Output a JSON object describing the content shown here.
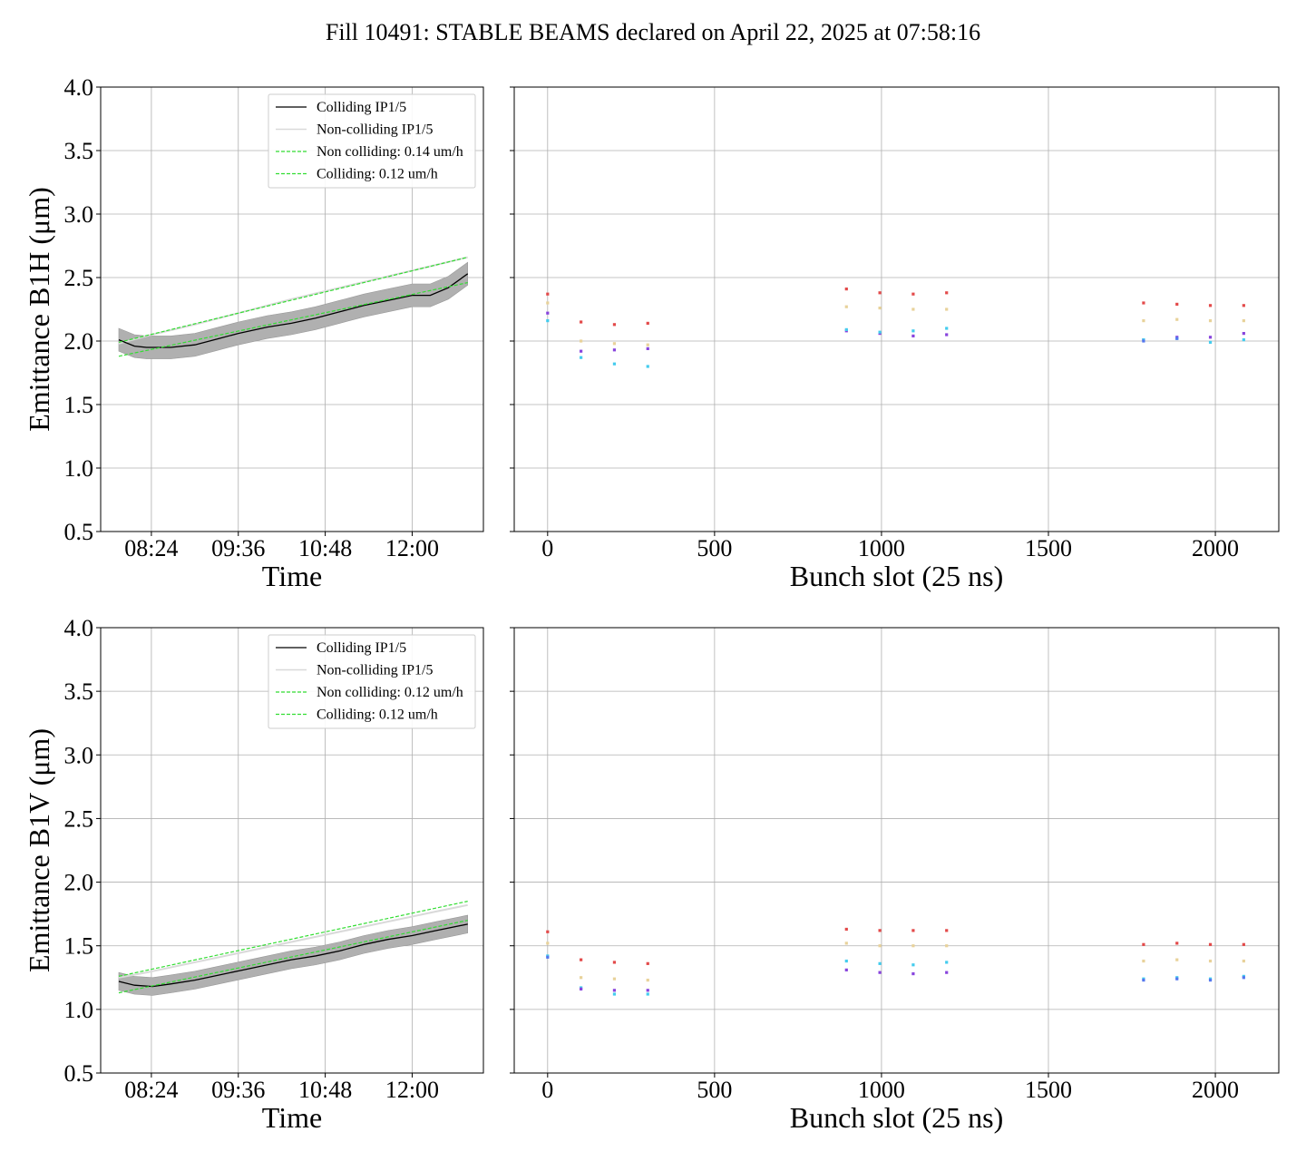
{
  "figure": {
    "title": "Fill 10491: STABLE BEAMS declared on April 22, 2025 at 07:58:16"
  },
  "chart_data": [
    {
      "type": "line",
      "panel": "top-left",
      "ylabel": "Emittance B1H (μm)",
      "xlabel": "Time",
      "ylim": [
        0.5,
        4.0
      ],
      "yticks": [
        "0.5",
        "1.0",
        "1.5",
        "2.0",
        "2.5",
        "3.0",
        "3.5",
        "4.0"
      ],
      "xticks": [
        "08:24",
        "09:36",
        "10:48",
        "12:00"
      ],
      "xtick_minutes": [
        504,
        576,
        648,
        720
      ],
      "xlim_minutes": [
        462,
        779
      ],
      "grid": true,
      "legend": {
        "placement": "top-right",
        "entries": [
          "Colliding IP1/5",
          "Non-colliding IP1/5",
          "Non colliding: 0.14 um/h",
          "Colliding: 0.12 um/h"
        ]
      },
      "colors": {
        "colliding": "#000000",
        "band": "#b0b0b0",
        "noncolliding": "#d9d9d9",
        "fit": "#33dd33"
      },
      "series": [
        {
          "name": "Colliding IP1/5",
          "x_minutes": [
            477,
            490,
            500,
            520,
            540,
            560,
            576,
            600,
            620,
            640,
            660,
            680,
            700,
            720,
            735,
            750,
            766
          ],
          "values": [
            2.01,
            1.96,
            1.95,
            1.95,
            1.97,
            2.02,
            2.06,
            2.11,
            2.14,
            2.18,
            2.23,
            2.28,
            2.32,
            2.36,
            2.36,
            2.42,
            2.53
          ],
          "band_halfwidth": 0.09
        },
        {
          "name": "Non-colliding IP1/5",
          "x_minutes": [
            477,
            500,
            540,
            580,
            620,
            660,
            700,
            740,
            766
          ],
          "values": [
            1.98,
            2.04,
            2.13,
            2.23,
            2.33,
            2.42,
            2.51,
            2.6,
            2.66
          ]
        },
        {
          "name": "Non colliding: 0.14 um/h",
          "x_minutes": [
            477,
            766
          ],
          "values": [
            1.99,
            2.66
          ]
        },
        {
          "name": "Colliding: 0.12 um/h",
          "x_minutes": [
            477,
            766
          ],
          "values": [
            1.88,
            2.46
          ]
        }
      ]
    },
    {
      "type": "scatter",
      "panel": "top-right",
      "xlabel": "Bunch slot (25 ns)",
      "xlim": [
        -100,
        2190
      ],
      "ylim": [
        0.5,
        4.0
      ],
      "xticks": [
        0,
        500,
        1000,
        1500,
        2000
      ],
      "grid": true,
      "groups": [
        {
          "color": "#e34a4a",
          "x": [
            0,
            100,
            200,
            300,
            895,
            995,
            1095,
            1195,
            1785,
            1885,
            1985,
            2085
          ],
          "y": [
            2.37,
            2.15,
            2.13,
            2.14,
            2.41,
            2.38,
            2.37,
            2.38,
            2.3,
            2.29,
            2.28,
            2.28
          ]
        },
        {
          "color": "#e8d29a",
          "x": [
            0,
            100,
            200,
            300,
            895,
            995,
            1095,
            1195,
            1785,
            1885,
            1985,
            2085
          ],
          "y": [
            2.3,
            2.0,
            1.98,
            1.97,
            2.27,
            2.26,
            2.25,
            2.25,
            2.16,
            2.17,
            2.16,
            2.16
          ]
        },
        {
          "color": "#8844dd",
          "x": [
            0,
            100,
            200,
            300,
            895,
            995,
            1095,
            1195,
            1785,
            1885,
            1985,
            2085
          ],
          "y": [
            2.22,
            1.92,
            1.93,
            1.94,
            2.08,
            2.06,
            2.04,
            2.05,
            2.01,
            2.03,
            2.03,
            2.06
          ]
        },
        {
          "color": "#44ccee",
          "x": [
            0,
            100,
            200,
            300,
            895,
            995,
            1095,
            1195,
            1785,
            1885,
            1985,
            2085
          ],
          "y": [
            2.16,
            1.87,
            1.82,
            1.8,
            2.09,
            2.07,
            2.08,
            2.1,
            2.01,
            2.02,
            1.99,
            2.01
          ]
        },
        {
          "color": "#5577ee",
          "x": [
            1785,
            1885
          ],
          "y": [
            2.0,
            2.02
          ]
        }
      ]
    },
    {
      "type": "line",
      "panel": "bottom-left",
      "ylabel": "Emittance B1V (μm)",
      "xlabel": "Time",
      "ylim": [
        0.5,
        4.0
      ],
      "yticks": [
        "0.5",
        "1.0",
        "1.5",
        "2.0",
        "2.5",
        "3.0",
        "3.5",
        "4.0"
      ],
      "xticks": [
        "08:24",
        "09:36",
        "10:48",
        "12:00"
      ],
      "xtick_minutes": [
        504,
        576,
        648,
        720
      ],
      "xlim_minutes": [
        462,
        779
      ],
      "grid": true,
      "legend": {
        "placement": "top-right",
        "entries": [
          "Colliding IP1/5",
          "Non-colliding IP1/5",
          "Non colliding: 0.12 um/h",
          "Colliding: 0.12 um/h"
        ]
      },
      "colors": {
        "colliding": "#000000",
        "band": "#b0b0b0",
        "noncolliding": "#d9d9d9",
        "fit": "#33dd33"
      },
      "series": [
        {
          "name": "Colliding IP1/5",
          "x_minutes": [
            477,
            490,
            505,
            520,
            540,
            560,
            580,
            600,
            620,
            640,
            660,
            680,
            700,
            720,
            740,
            766
          ],
          "values": [
            1.22,
            1.19,
            1.18,
            1.2,
            1.23,
            1.27,
            1.31,
            1.35,
            1.39,
            1.42,
            1.46,
            1.51,
            1.55,
            1.58,
            1.62,
            1.67
          ],
          "band_halfwidth": 0.07
        },
        {
          "name": "Non-colliding IP1/5",
          "x_minutes": [
            477,
            500,
            540,
            580,
            620,
            660,
            700,
            740,
            766
          ],
          "values": [
            1.25,
            1.29,
            1.37,
            1.45,
            1.53,
            1.61,
            1.69,
            1.77,
            1.82
          ]
        },
        {
          "name": "Non colliding: 0.12 um/h",
          "x_minutes": [
            477,
            766
          ],
          "values": [
            1.26,
            1.85
          ]
        },
        {
          "name": "Colliding: 0.12 um/h",
          "x_minutes": [
            477,
            766
          ],
          "values": [
            1.13,
            1.7
          ]
        }
      ]
    },
    {
      "type": "scatter",
      "panel": "bottom-right",
      "xlabel": "Bunch slot (25 ns)",
      "xlim": [
        -100,
        2190
      ],
      "ylim": [
        0.5,
        4.0
      ],
      "xticks": [
        0,
        500,
        1000,
        1500,
        2000
      ],
      "grid": true,
      "groups": [
        {
          "color": "#e34a4a",
          "x": [
            0,
            100,
            200,
            300,
            895,
            995,
            1095,
            1195,
            1785,
            1885,
            1985,
            2085
          ],
          "y": [
            1.61,
            1.39,
            1.37,
            1.36,
            1.63,
            1.62,
            1.62,
            1.62,
            1.51,
            1.52,
            1.51,
            1.51
          ]
        },
        {
          "color": "#e8d29a",
          "x": [
            0,
            100,
            200,
            300,
            895,
            995,
            1095,
            1195,
            1785,
            1885,
            1985,
            2085
          ],
          "y": [
            1.52,
            1.25,
            1.24,
            1.23,
            1.52,
            1.5,
            1.5,
            1.5,
            1.38,
            1.39,
            1.38,
            1.38
          ]
        },
        {
          "color": "#44ccee",
          "x": [
            0,
            100,
            200,
            300,
            895,
            995,
            1095,
            1195,
            1785,
            1885,
            1985,
            2085
          ],
          "y": [
            1.42,
            1.17,
            1.12,
            1.12,
            1.38,
            1.36,
            1.35,
            1.37,
            1.24,
            1.25,
            1.24,
            1.26
          ]
        },
        {
          "color": "#8844dd",
          "x": [
            100,
            200,
            300,
            895,
            995,
            1095,
            1195
          ],
          "y": [
            1.16,
            1.15,
            1.15,
            1.31,
            1.29,
            1.28,
            1.29
          ]
        },
        {
          "color": "#5577ee",
          "x": [
            0,
            1785,
            1885,
            1985,
            2085
          ],
          "y": [
            1.41,
            1.23,
            1.24,
            1.23,
            1.25
          ]
        }
      ]
    }
  ]
}
